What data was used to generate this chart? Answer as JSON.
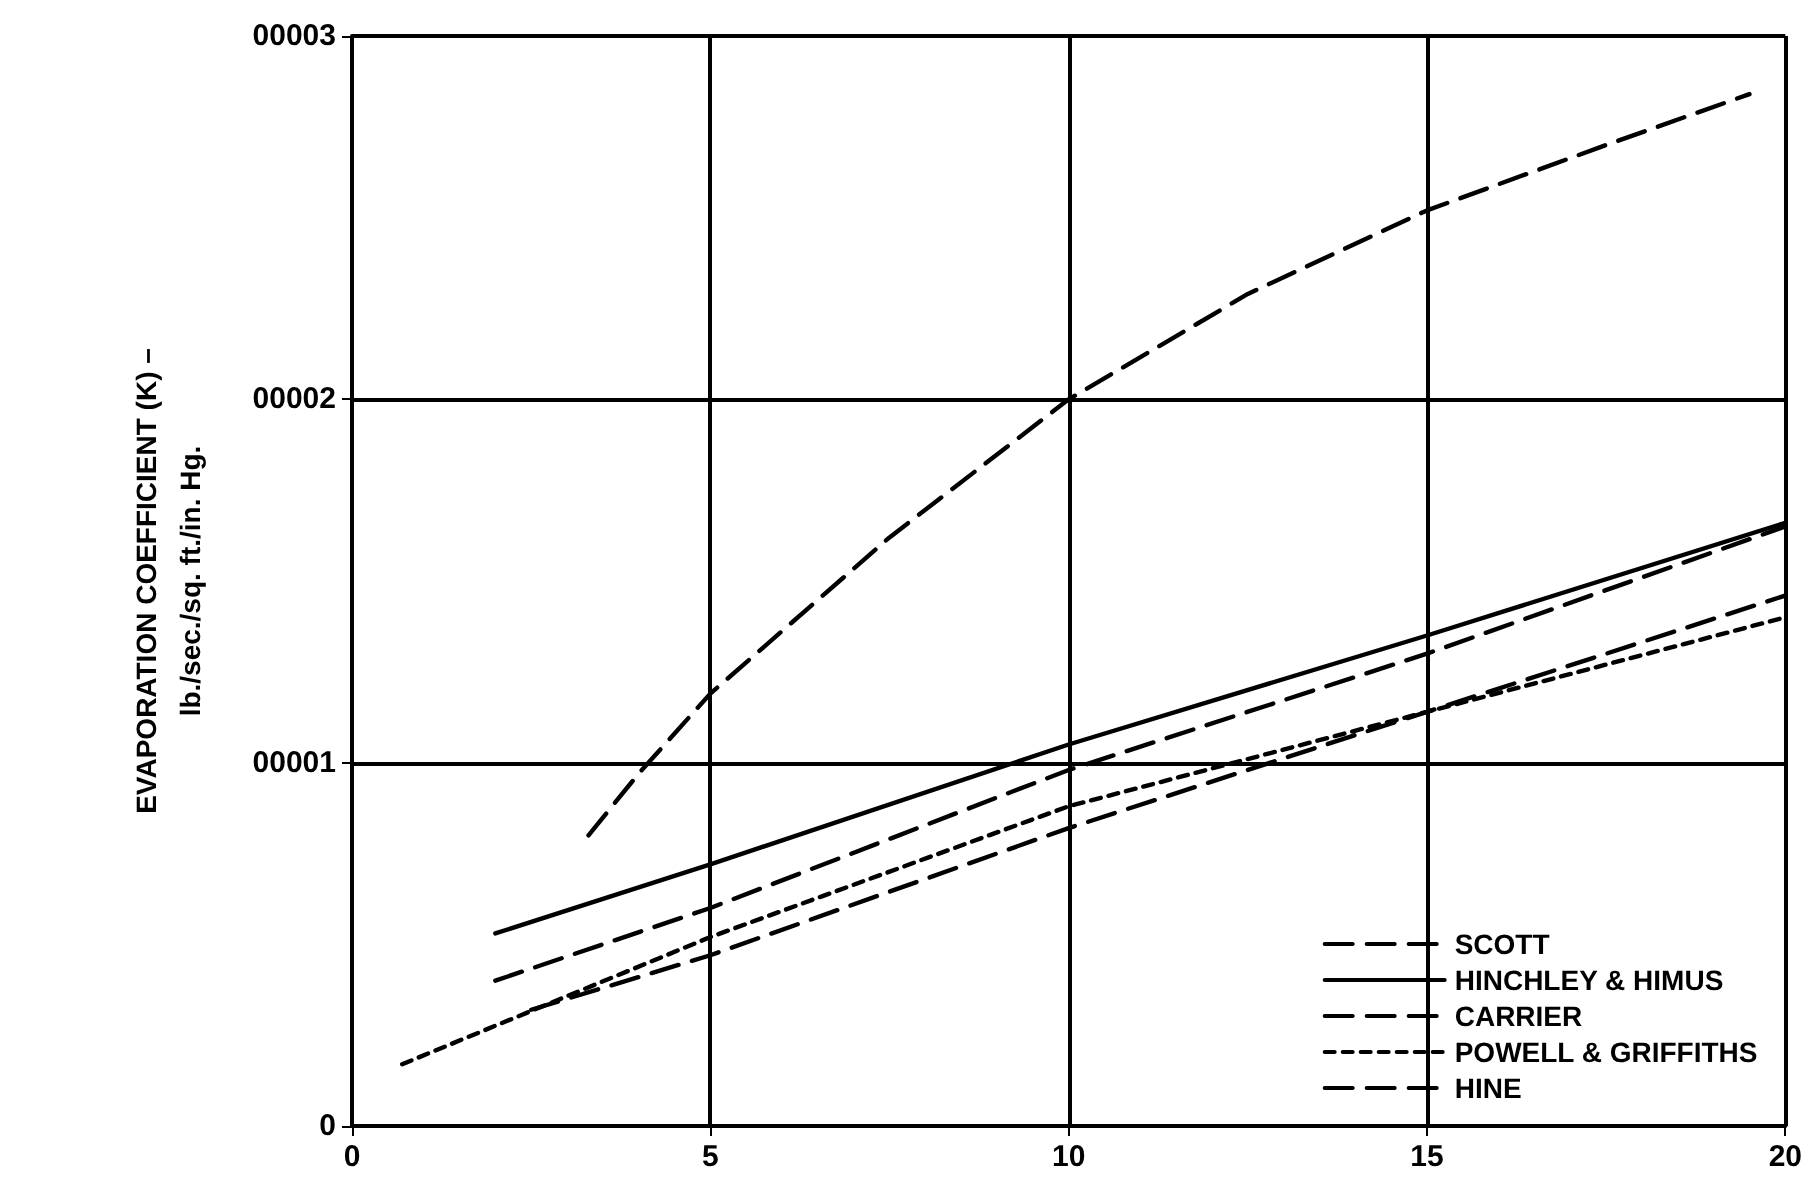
{
  "chart_data": {
    "type": "line",
    "ylabel": "EVAPORATION COEFFICIENT (K) –\nlb./sec./sq. ft./in. Hg.",
    "xlim": [
      0,
      20
    ],
    "xticks": [
      0,
      5,
      10,
      15,
      20
    ],
    "ylim": [
      0,
      3
    ],
    "yticks": [
      0,
      {
        "value": 1,
        "label": "00001"
      },
      {
        "value": 2,
        "label": "00002"
      },
      {
        "value": 3,
        "label": "00003"
      }
    ],
    "grid": true,
    "legend": "bottom right",
    "marker": "none",
    "series": [
      {
        "name": "SCOTT",
        "color": "#000000",
        "line_style": "dashed",
        "x": [
          3.3,
          4,
          5,
          7.5,
          10,
          12.5,
          15,
          17.5,
          19.5
        ],
        "values": [
          0.8,
          0.97,
          1.19,
          1.62,
          2.0,
          2.29,
          2.52,
          2.7,
          2.84
        ]
      },
      {
        "name": "HINCHLEY & HIMUS",
        "color": "#000000",
        "line_style": "solid",
        "x": [
          2,
          5,
          10,
          15,
          20
        ],
        "values": [
          0.53,
          0.72,
          1.05,
          1.35,
          1.66
        ]
      },
      {
        "name": "CARRIER",
        "color": "#000000",
        "line_style": "dashed",
        "x": [
          2,
          5,
          10,
          15,
          20
        ],
        "values": [
          0.4,
          0.6,
          0.98,
          1.3,
          1.65
        ]
      },
      {
        "name": "POWELL & GRIFFITHS",
        "color": "#000000",
        "line_style": "dotted",
        "x": [
          0.7,
          5,
          10,
          15,
          20
        ],
        "values": [
          0.17,
          0.52,
          0.88,
          1.14,
          1.4
        ]
      },
      {
        "name": "HINE",
        "color": "#000000",
        "line_style": "dashed",
        "x": [
          2.5,
          5,
          10,
          15,
          20
        ],
        "values": [
          0.32,
          0.47,
          0.82,
          1.14,
          1.46
        ]
      }
    ]
  }
}
